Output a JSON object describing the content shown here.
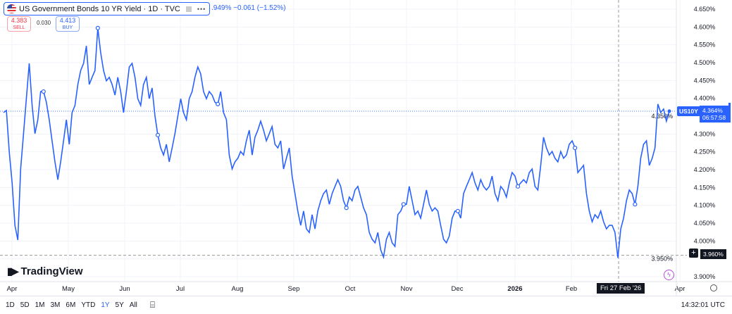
{
  "header": {
    "title": "US Government Bonds 10 YR Yield · 1D · TVC",
    "change": ".949%  −0.061 (−1.52%)",
    "more_icon": "ellipsis-icon",
    "flag_icon": "us-flag-icon"
  },
  "trade": {
    "sell_price": "4.383",
    "sell_label": "SELL",
    "spread": "0.030",
    "buy_price": "4.413",
    "buy_label": "BUY"
  },
  "logo": {
    "text": "TradingView"
  },
  "price_tag": {
    "symbol": "US10Y",
    "price": "4.364%",
    "countdown": "06:57:58"
  },
  "crosshair": {
    "price": "3.960%",
    "date": "Fri 27 Feb '26"
  },
  "toolbar": {
    "ranges": [
      "1D",
      "5D",
      "1M",
      "3M",
      "6M",
      "YTD",
      "1Y",
      "5Y",
      "All"
    ],
    "selected": "1Y",
    "time": "14:32:01 UTC"
  },
  "colors": {
    "line": "#2962ff",
    "sell": "#f23645",
    "buy": "#2962ff",
    "event": "#b34fd6"
  },
  "chart_data": {
    "type": "line",
    "title": "US Government Bonds 10 YR Yield",
    "x_range": [
      "2025-03-28",
      "2026-03-19"
    ],
    "x_ticks": [
      "Apr",
      "May",
      "Jun",
      "Jul",
      "Aug",
      "Sep",
      "Oct",
      "Nov",
      "Dec",
      "2026",
      "Feb",
      "Apr"
    ],
    "y_ticks": [
      "4.650%",
      "4.600%",
      "4.550%",
      "4.500%",
      "4.450%",
      "4.400%",
      "4.350%",
      "4.300%",
      "4.250%",
      "4.200%",
      "4.150%",
      "4.100%",
      "4.050%",
      "4.000%",
      "3.950%",
      "3.900%"
    ],
    "ylim": [
      3.88,
      4.66
    ],
    "grid": true,
    "values": [
      4.36,
      4.366,
      4.251,
      4.163,
      4.044,
      4.003,
      4.202,
      4.301,
      4.399,
      4.498,
      4.38,
      4.301,
      4.34,
      4.419,
      4.419,
      4.389,
      4.34,
      4.281,
      4.222,
      4.172,
      4.222,
      4.281,
      4.34,
      4.271,
      4.36,
      4.38,
      4.439,
      4.478,
      4.498,
      4.547,
      4.439,
      4.459,
      4.478,
      4.597,
      4.528,
      4.478,
      4.449,
      4.459,
      4.439,
      4.409,
      4.459,
      4.419,
      4.36,
      4.419,
      4.488,
      4.498,
      4.459,
      4.399,
      4.38,
      4.439,
      4.459,
      4.399,
      4.429,
      4.35,
      4.297,
      4.261,
      4.241,
      4.271,
      4.222,
      4.261,
      4.301,
      4.35,
      4.399,
      4.36,
      4.34,
      4.399,
      4.419,
      4.459,
      4.488,
      4.469,
      4.419,
      4.399,
      4.419,
      4.409,
      4.389,
      4.384,
      4.419,
      4.36,
      4.34,
      4.241,
      4.202,
      4.222,
      4.232,
      4.251,
      4.241,
      4.281,
      4.311,
      4.241,
      4.291,
      4.311,
      4.336,
      4.311,
      4.281,
      4.301,
      4.321,
      4.271,
      4.261,
      4.281,
      4.202,
      4.232,
      4.261,
      4.182,
      4.133,
      4.084,
      4.044,
      4.084,
      4.034,
      4.024,
      4.074,
      4.034,
      4.084,
      4.113,
      4.133,
      4.143,
      4.103,
      4.133,
      4.153,
      4.172,
      4.153,
      4.113,
      4.093,
      4.123,
      4.113,
      4.143,
      4.153,
      4.123,
      4.093,
      4.074,
      4.024,
      4.005,
      3.995,
      4.024,
      3.975,
      3.955,
      4.005,
      4.024,
      3.995,
      3.985,
      4.074,
      4.084,
      4.103,
      4.103,
      4.153,
      4.113,
      4.074,
      4.084,
      4.064,
      4.103,
      4.143,
      4.103,
      4.084,
      4.093,
      4.084,
      4.044,
      4.005,
      3.995,
      4.014,
      4.064,
      4.084,
      4.084,
      4.064,
      4.133,
      4.153,
      4.172,
      4.192,
      4.163,
      4.143,
      4.172,
      4.153,
      4.143,
      4.153,
      4.182,
      4.133,
      4.113,
      4.153,
      4.143,
      4.123,
      4.163,
      4.192,
      4.182,
      4.153,
      4.163,
      4.172,
      4.163,
      4.192,
      4.202,
      4.153,
      4.143,
      4.212,
      4.291,
      4.261,
      4.241,
      4.251,
      4.232,
      4.222,
      4.251,
      4.232,
      4.241,
      4.271,
      4.281,
      4.261,
      4.192,
      4.202,
      4.212,
      4.133,
      4.084,
      4.054,
      4.074,
      4.064,
      4.084,
      4.054,
      4.034,
      4.044,
      4.044,
      4.024,
      3.953,
      4.034,
      4.064,
      4.113,
      4.143,
      4.133,
      4.103,
      4.153,
      4.232,
      4.271,
      4.281,
      4.212,
      4.232,
      4.261,
      4.384,
      4.36,
      4.37,
      4.336,
      4.364
    ],
    "event_markers": [
      14,
      33,
      54,
      75,
      120,
      140,
      159,
      180,
      200,
      221
    ],
    "last_value": 4.364,
    "crosshair_value": 3.96
  }
}
